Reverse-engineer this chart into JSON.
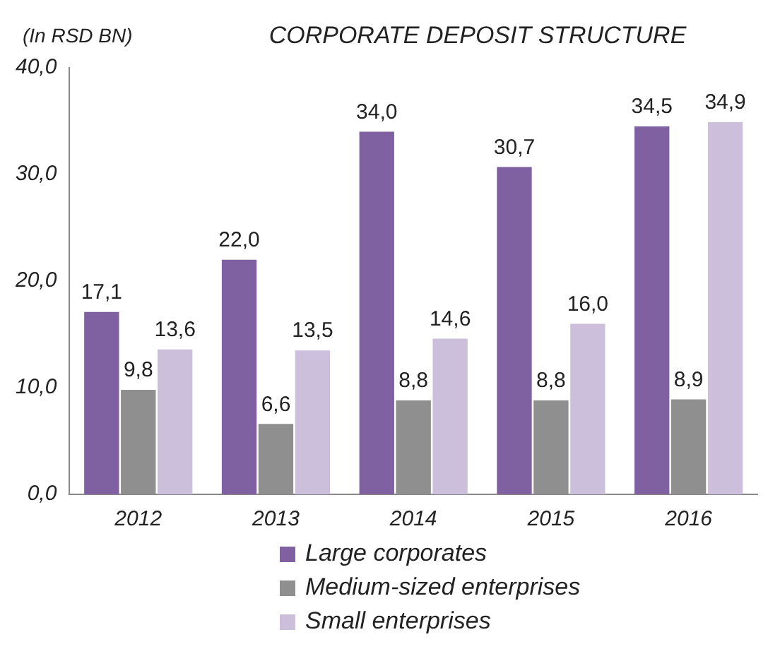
{
  "chart_data": {
    "type": "bar",
    "title": "CORPORATE DEPOSIT STRUCTURE",
    "ylabel": "(In RSD BN)",
    "categories": [
      "2012",
      "2013",
      "2014",
      "2015",
      "2016"
    ],
    "series": [
      {
        "name": "Large corporates",
        "color": "#7f60a1",
        "values": [
          17.1,
          22.0,
          34.0,
          30.7,
          34.5
        ],
        "value_labels": [
          "17,1",
          "22,0",
          "34,0",
          "30,7",
          "34,5"
        ]
      },
      {
        "name": "Medium-sized enterprises",
        "color": "#8f8f8f",
        "values": [
          9.8,
          6.6,
          8.8,
          8.8,
          8.9
        ],
        "value_labels": [
          "9,8",
          "6,6",
          "8,8",
          "8,8",
          "8,9"
        ]
      },
      {
        "name": "Small enterprises",
        "color": "#cbbfdc",
        "values": [
          13.6,
          13.5,
          14.6,
          16.0,
          34.9
        ],
        "value_labels": [
          "13,6",
          "13,5",
          "14,6",
          "16,0",
          "34,9"
        ]
      }
    ],
    "ylim": [
      0,
      40
    ],
    "yticks": [
      {
        "value": 0,
        "label": "0,0"
      },
      {
        "value": 10,
        "label": "10,0"
      },
      {
        "value": 20,
        "label": "20,0"
      },
      {
        "value": 30,
        "label": "30,0"
      },
      {
        "value": 40,
        "label": "40,0"
      }
    ],
    "grid": false,
    "legend": "bottom"
  }
}
